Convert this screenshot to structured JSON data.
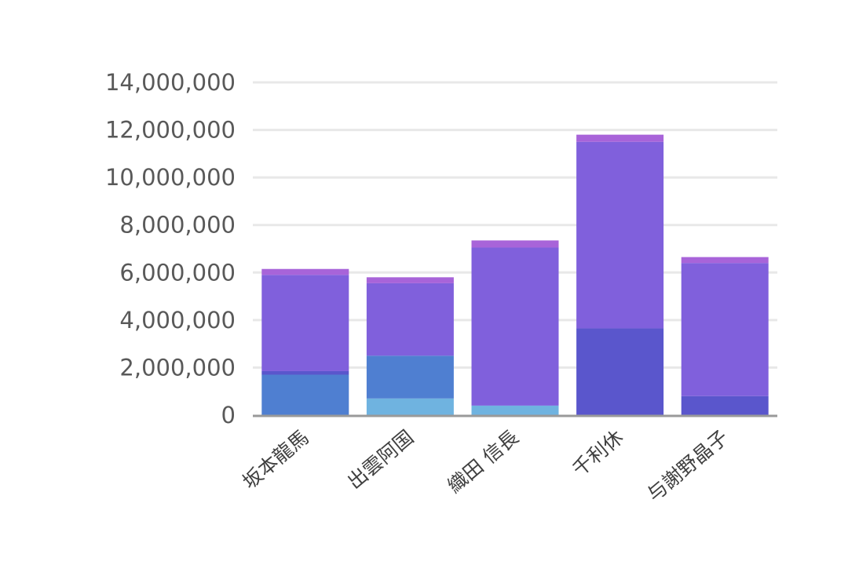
{
  "chart_data": {
    "type": "bar",
    "stacked": true,
    "categories": [
      "坂本龍馬",
      "出雲阿国",
      "織田 信長",
      "千利休",
      "与謝野晶子"
    ],
    "series": [
      {
        "color": "#6fb3e0",
        "values": [
          0,
          700000,
          400000,
          0,
          0
        ]
      },
      {
        "color": "#4f7fd1",
        "values": [
          1700000,
          1800000,
          0,
          0,
          0
        ]
      },
      {
        "color": "#5a56cc",
        "values": [
          150000,
          0,
          0,
          3650000,
          800000
        ]
      },
      {
        "color": "#8060dc",
        "values": [
          4050000,
          3050000,
          6650000,
          7850000,
          5600000
        ]
      },
      {
        "color": "#a864d9",
        "values": [
          250000,
          250000,
          300000,
          300000,
          250000
        ]
      }
    ],
    "ylim": [
      0,
      14000000
    ],
    "yticks": [
      "0",
      "2,000,000",
      "4,000,000",
      "6,000,000",
      "8,000,000",
      "10,000,000",
      "12,000,000",
      "14,000,000"
    ],
    "ytick_values": [
      0,
      2000000,
      4000000,
      6000000,
      8000000,
      10000000,
      12000000,
      14000000
    ],
    "grid": true,
    "title": "",
    "xlabel": "",
    "ylabel": ""
  }
}
